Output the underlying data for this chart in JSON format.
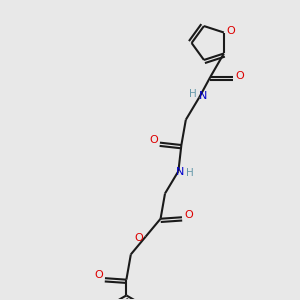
{
  "bg_color": "#e8e8e8",
  "bond_color": "#1a1a1a",
  "O_color": "#dd0000",
  "N_color": "#0000cc",
  "H_color": "#6699aa",
  "line_width": 1.5,
  "fig_size": [
    3.0,
    3.0
  ],
  "dpi": 100,
  "xlim": [
    0,
    10
  ],
  "ylim": [
    0,
    10
  ]
}
